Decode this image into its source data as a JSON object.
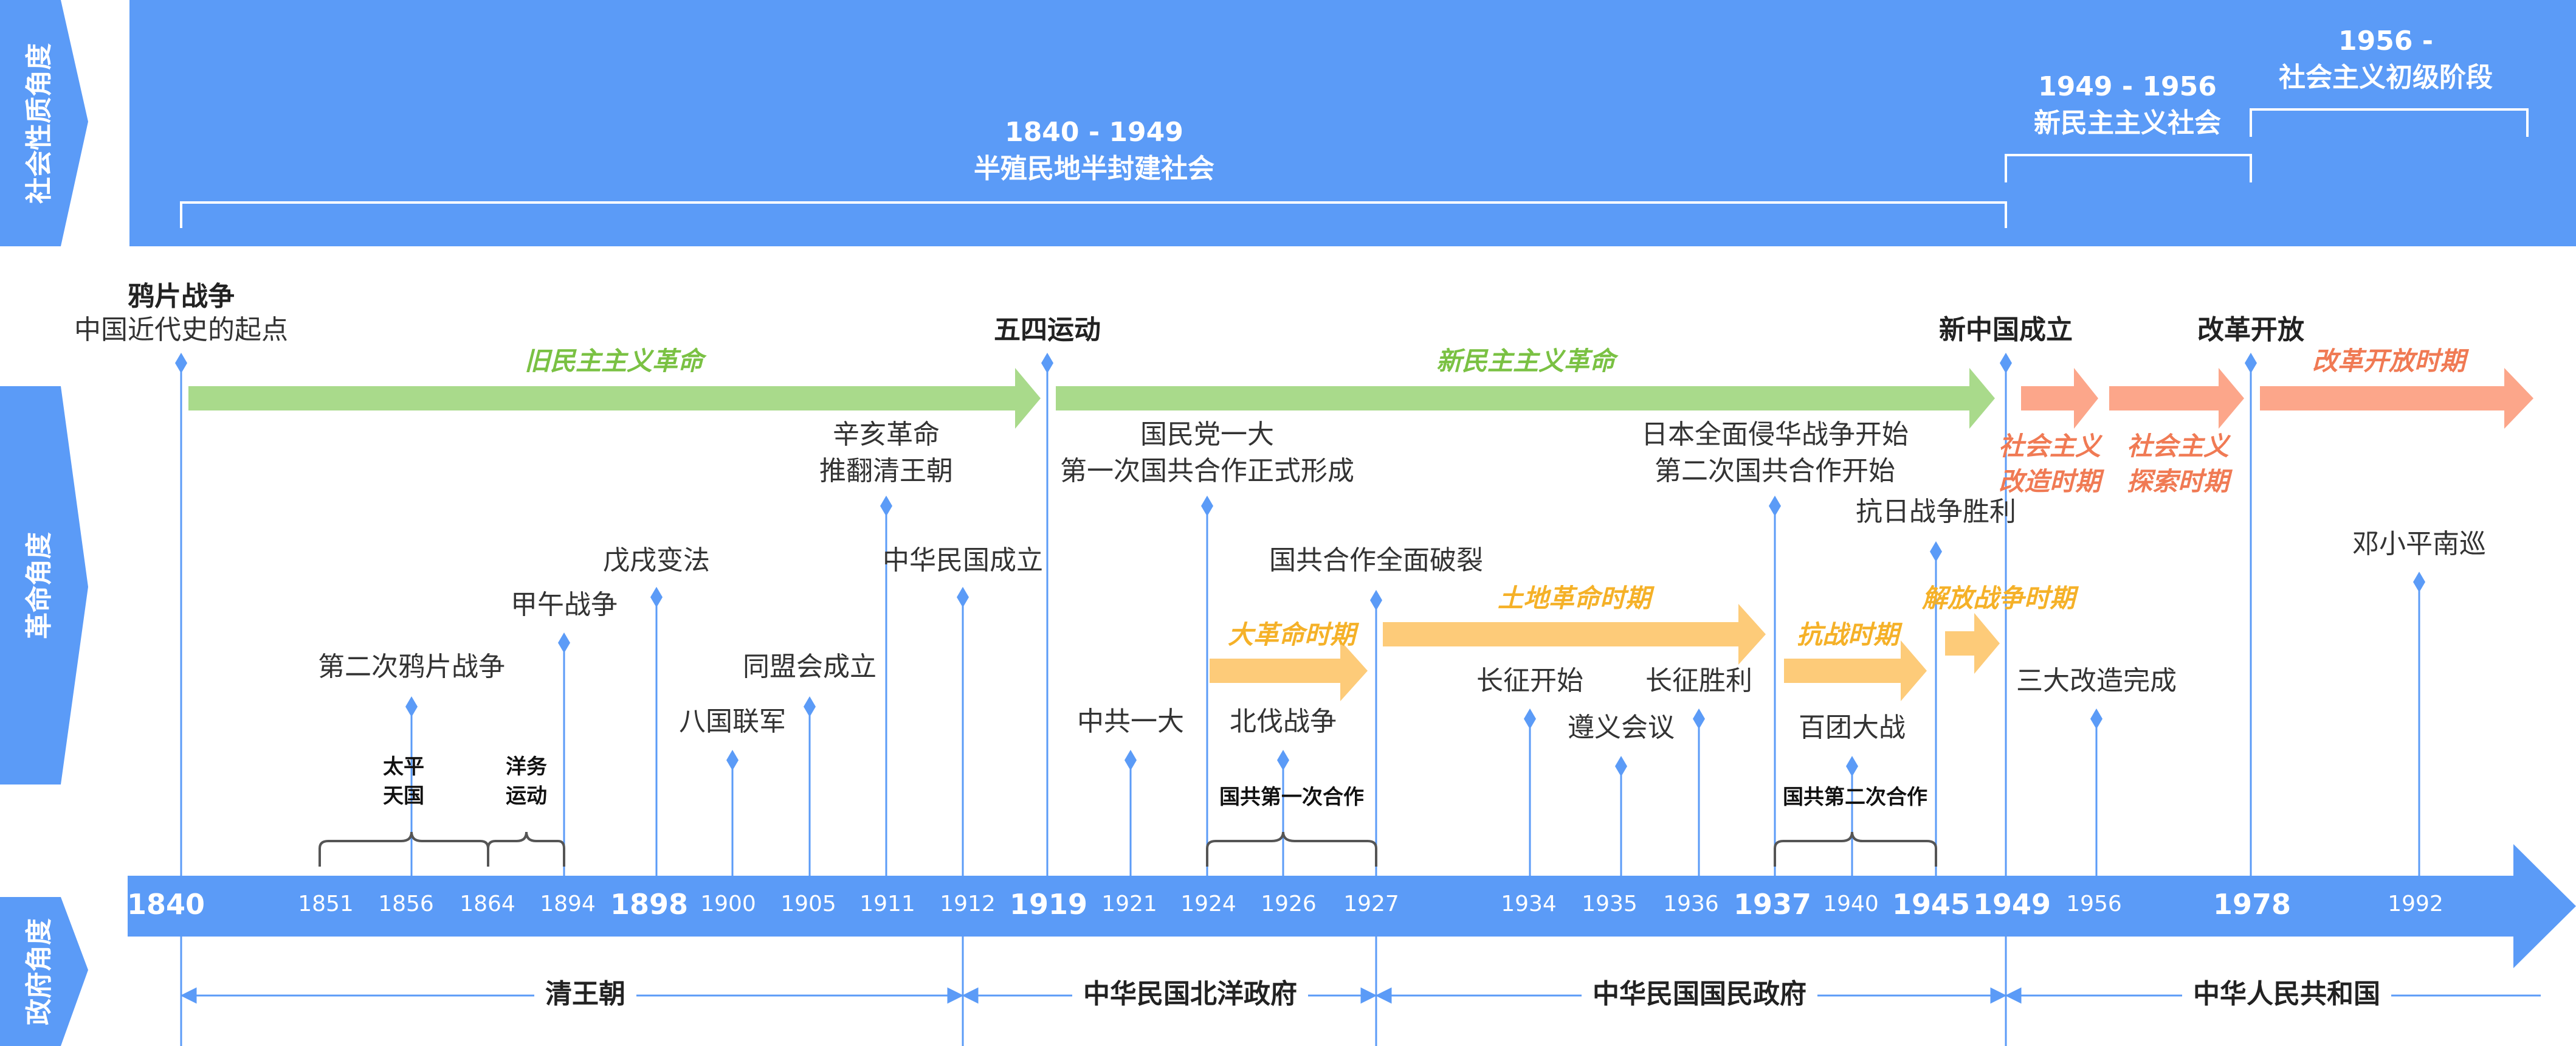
{
  "side_labels": {
    "society": "社会性质角度",
    "revolution": "革命角度",
    "government": "政府角度"
  },
  "periods": {
    "p1": {
      "years": "1840 - 1949",
      "name": "半殖民地半封建社会"
    },
    "p2": {
      "years": "1949 - 1956",
      "name": "新民主主义社会"
    },
    "p3": {
      "years": "1956 -",
      "name": "社会主义初级阶段"
    }
  },
  "eras": {
    "old_democratic": "旧民主主义革命",
    "new_democratic": "新民主主义革命",
    "socialist_transform_1": "社会主义",
    "socialist_transform_2": "改造时期",
    "socialist_explore_1": "社会主义",
    "socialist_explore_2": "探索时期",
    "reform": "改革开放时期",
    "great_revolution": "大革命时期",
    "land_revolution": "土地革命时期",
    "anti_japanese": "抗战时期",
    "liberation": "解放战争时期"
  },
  "events": {
    "opium_war": "鸦片战争",
    "opium_war_sub": "中国近代史的起点",
    "may_fourth": "五四运动",
    "new_china": "新中国成立",
    "reform_opening": "改革开放",
    "second_opium": "第二次鸦片战争",
    "sino_japanese": "甲午战争",
    "wuxu": "戊戌变法",
    "eight_nation": "八国联军",
    "tongmenghui": "同盟会成立",
    "xinhai_1": "辛亥革命",
    "xinhai_2": "推翻清王朝",
    "roc_founded": "中华民国成立",
    "ccp_congress": "中共一大",
    "kmt_congress_1": "国民党一大",
    "kmt_congress_2": "第一次国共合作正式形成",
    "northern_exp": "北伐战争",
    "split": "国共合作全面破裂",
    "long_march_start": "长征开始",
    "zunyi": "遵义会议",
    "long_march_end": "长征胜利",
    "full_invasion_1": "日本全面侵华战争开始",
    "full_invasion_2": "第二次国共合作开始",
    "hundred_reg": "百团大战",
    "victory": "抗日战争胜利",
    "three_transform": "三大改造完成",
    "deng_south": "邓小平南巡",
    "taiping_1": "太平",
    "taiping_2": "天国",
    "yangwu_1": "洋务",
    "yangwu_2": "运动",
    "first_coop": "国共第一次合作",
    "second_coop": "国共第二次合作"
  },
  "years": [
    {
      "label": "1840",
      "big": true
    },
    {
      "label": "1851",
      "big": false
    },
    {
      "label": "1856",
      "big": false
    },
    {
      "label": "1864",
      "big": false
    },
    {
      "label": "1894",
      "big": false
    },
    {
      "label": "1898",
      "big": true
    },
    {
      "label": "1900",
      "big": false
    },
    {
      "label": "1905",
      "big": false
    },
    {
      "label": "1911",
      "big": false
    },
    {
      "label": "1912",
      "big": false
    },
    {
      "label": "1919",
      "big": true
    },
    {
      "label": "1921",
      "big": false
    },
    {
      "label": "1924",
      "big": false
    },
    {
      "label": "1926",
      "big": false
    },
    {
      "label": "1927",
      "big": false
    },
    {
      "label": "1934",
      "big": false
    },
    {
      "label": "1935",
      "big": false
    },
    {
      "label": "1936",
      "big": false
    },
    {
      "label": "1937",
      "big": true
    },
    {
      "label": "1940",
      "big": false
    },
    {
      "label": "1945",
      "big": true
    },
    {
      "label": "1949",
      "big": true
    },
    {
      "label": "1956",
      "big": false
    },
    {
      "label": "1978",
      "big": true
    },
    {
      "label": "1992",
      "big": false
    }
  ],
  "governments": {
    "qing": "清王朝",
    "beiyang": "中华民国北洋政府",
    "nationalist": "中华民国国民政府",
    "prc": "中华人民共和国"
  },
  "colors": {
    "blue": "#5b9bf7",
    "green": "#a9da8b",
    "green_text": "#7ac143",
    "orange": "#fdcb79",
    "orange_text": "#f5b128",
    "salmon": "#fca68a",
    "salmon_text": "#f07a54"
  }
}
